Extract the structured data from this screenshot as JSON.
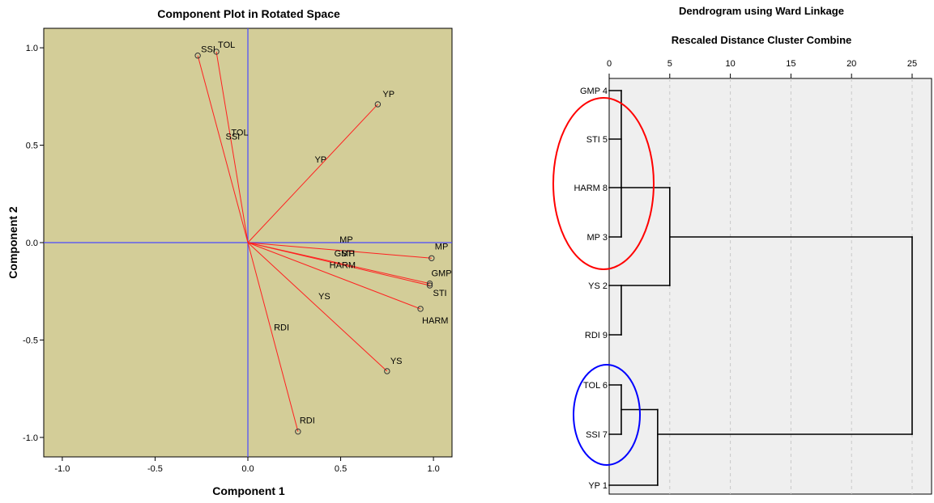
{
  "chart_data": [
    {
      "type": "scatter",
      "title": "Component Plot in Rotated Space",
      "xlabel": "Component 1",
      "ylabel": "Component 2",
      "xlim": [
        -1.1,
        1.1
      ],
      "ylim": [
        -1.1,
        1.1
      ],
      "xticks": [
        "-1.0",
        "-0.5",
        "0.0",
        "0.5",
        "1.0"
      ],
      "yticks": [
        "1.0",
        "0.5",
        "0.0",
        "-0.5",
        "-1.0"
      ],
      "xtick_values": [
        -1.0,
        -0.5,
        0.0,
        0.5,
        1.0
      ],
      "ytick_values": [
        1.0,
        0.5,
        0.0,
        -0.5,
        -1.0
      ],
      "grid": false,
      "background_color": "#D3CD98",
      "vector_color": "#FF2020",
      "axis_line_color": "#4A4AFF",
      "points": [
        {
          "label": "SSI",
          "x": -0.27,
          "y": 0.96
        },
        {
          "label": "TOL",
          "x": -0.17,
          "y": 0.98
        },
        {
          "label": "YP",
          "x": 0.7,
          "y": 0.71
        },
        {
          "label": "MP",
          "x": 0.99,
          "y": -0.08
        },
        {
          "label": "GMP",
          "x": 0.98,
          "y": -0.21
        },
        {
          "label": "STI",
          "x": 0.98,
          "y": -0.22
        },
        {
          "label": "HARM",
          "x": 0.93,
          "y": -0.34
        },
        {
          "label": "YS",
          "x": 0.75,
          "y": -0.66
        },
        {
          "label": "RDI",
          "x": 0.27,
          "y": -0.97
        }
      ],
      "midpoint_labels": [
        "SSI",
        "TOL",
        "YP",
        "MP",
        "GMP",
        "STI",
        "HARM",
        "YS",
        "RDI"
      ]
    },
    {
      "type": "dendrogram",
      "title": "Dendrogram using Ward Linkage",
      "subtitle": "Rescaled Distance Cluster Combine",
      "xticks": [
        "0",
        "5",
        "10",
        "15",
        "20",
        "25"
      ],
      "xtick_values": [
        0,
        5,
        10,
        15,
        20,
        25
      ],
      "xlim": [
        0,
        25
      ],
      "grid": true,
      "background_color": "#EFEFEF",
      "leaves": [
        "GMP",
        "STI",
        "HARM",
        "MP",
        "YS",
        "RDI",
        "TOL",
        "SSI",
        "YP"
      ],
      "leaf_labels": [
        "GMP 4",
        "STI 5",
        "HARM 8",
        "MP 3",
        "YS 2",
        "RDI 9",
        "TOL 6",
        "SSI 7",
        "YP 1"
      ],
      "merges": [
        {
          "left": "GMP",
          "right": "STI",
          "distance": 1
        },
        {
          "left": "GMP+STI",
          "right": "HARM",
          "distance": 1
        },
        {
          "left": "GMP+STI+HARM",
          "right": "MP",
          "distance": 1
        },
        {
          "left": "YS",
          "right": "RDI",
          "distance": 1
        },
        {
          "left": "GMP+STI+HARM+MP",
          "right": "YS+RDI",
          "distance": 5
        },
        {
          "left": "TOL",
          "right": "SSI",
          "distance": 1
        },
        {
          "left": "TOL+SSI",
          "right": "YP",
          "distance": 4
        },
        {
          "left": "all_groups",
          "right": "",
          "distance": 25
        }
      ],
      "highlight_colors": {
        "group_1": "#FF0000",
        "group_2": "#0000FF"
      }
    }
  ]
}
